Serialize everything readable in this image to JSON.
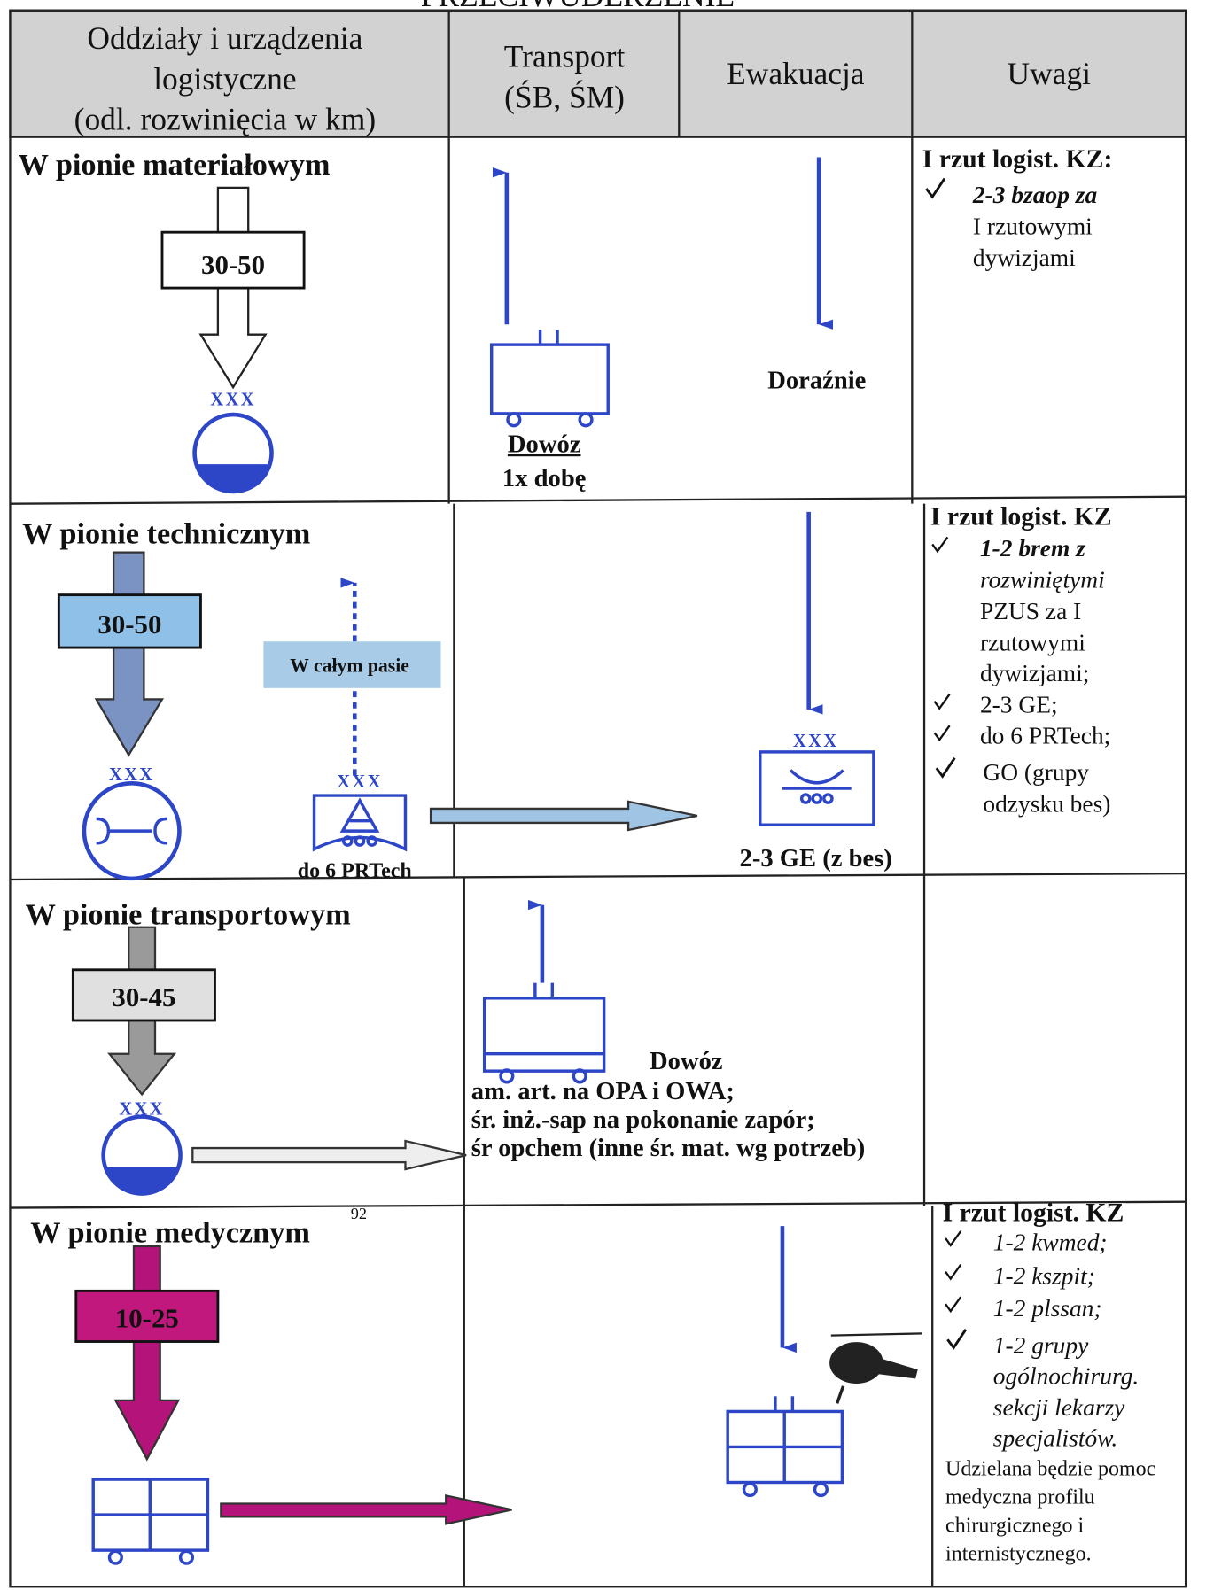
{
  "header": {
    "title": "PRZECIWUDERZENIE"
  },
  "table": {
    "headers": [
      [
        "Oddziały i urządzenia",
        "logistyczne",
        "(odl. rozwinięcia w km)"
      ],
      [
        "Transport",
        "(ŚB, ŚM)"
      ],
      [
        "Ewakuacja"
      ],
      [
        "Uwagi"
      ]
    ],
    "rows": [
      {
        "section": "W pionie materiałowym",
        "distance": "30-50",
        "unit": "XXX",
        "transport": [
          "Dowóz",
          "1x dobę"
        ],
        "evacuation": "Doraźnie",
        "remarks": {
          "title": "I rzut logist. KZ:",
          "lines": [
            "2-3 bzaop za",
            "I rzutowymi",
            "dywizjami"
          ]
        }
      },
      {
        "section": "W pionie technicznym",
        "distance": "30-50",
        "unit": "XXX",
        "band_label": "W całym pasie",
        "prtech_unit": "XXX",
        "prtech": "do 6 PRTech",
        "ge_unit": "XXX",
        "ge": "2-3 GE (z bes)",
        "remarks": {
          "title": "I rzut logist. KZ",
          "lines": [
            "1-2 brem z",
            "rozwiniętymi",
            "PZUS za I",
            "rzutowymi",
            "dywizjami;",
            "2-3 GE;",
            "do 6 PRTech;",
            "GO (grupy",
            "odzysku bes)"
          ]
        }
      },
      {
        "section": "W pionie transportowym",
        "distance": "30-45",
        "unit": "XXX",
        "transport": [
          "Dowóz",
          "am. art. na OPA i OWA;",
          "śr. inż.-sap na pokonanie zapór;",
          "śr opchem (inne śr. mat. wg potrzeb)"
        ]
      },
      {
        "section": "W pionie medycznym",
        "footnote": "92",
        "distance": "10-25",
        "remarks": {
          "title": "I rzut logist. KZ",
          "lines": [
            "1-2 kwmed;",
            "1-2 kszpit;",
            "1-2 plssan;",
            "1-2 grupy",
            "ogólnochirurg.",
            "sekcji lekarzy",
            "specjalistów."
          ],
          "note": [
            "Udzielana będzie pomoc",
            "medyczna profilu",
            "chirurgicznego i",
            "internistycznego."
          ]
        }
      }
    ]
  }
}
